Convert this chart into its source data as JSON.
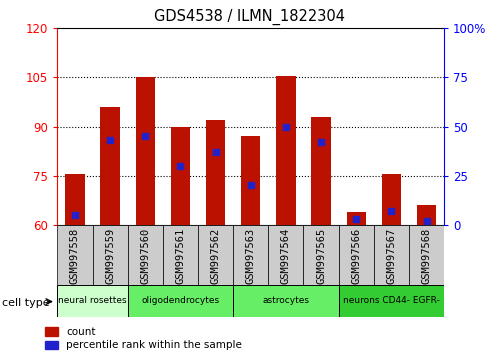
{
  "title": "GDS4538 / ILMN_1822304",
  "samples": [
    "GSM997558",
    "GSM997559",
    "GSM997560",
    "GSM997561",
    "GSM997562",
    "GSM997563",
    "GSM997564",
    "GSM997565",
    "GSM997566",
    "GSM997567",
    "GSM997568"
  ],
  "counts": [
    75.5,
    96.0,
    105.0,
    90.0,
    92.0,
    87.0,
    105.5,
    93.0,
    64.0,
    75.5,
    66.0
  ],
  "percentile_ranks": [
    5,
    43,
    45,
    30,
    37,
    20,
    50,
    42,
    3,
    7,
    2
  ],
  "ylim_left": [
    60,
    120
  ],
  "ylim_right": [
    0,
    100
  ],
  "yticks_left": [
    60,
    75,
    90,
    105,
    120
  ],
  "yticks_right": [
    0,
    25,
    50,
    75,
    100
  ],
  "grid_yticks": [
    75,
    90,
    105
  ],
  "bar_color": "#bb1100",
  "marker_color": "#2222cc",
  "groups": [
    {
      "label": "neural rosettes",
      "start": 0,
      "end": 2,
      "color": "#ccffcc"
    },
    {
      "label": "oligodendrocytes",
      "start": 2,
      "end": 5,
      "color": "#66ee66"
    },
    {
      "label": "astrocytes",
      "start": 5,
      "end": 8,
      "color": "#66ee66"
    },
    {
      "label": "neurons CD44- EGFR-",
      "start": 8,
      "end": 11,
      "color": "#33cc33"
    }
  ],
  "xtick_bg_color": "#cccccc"
}
